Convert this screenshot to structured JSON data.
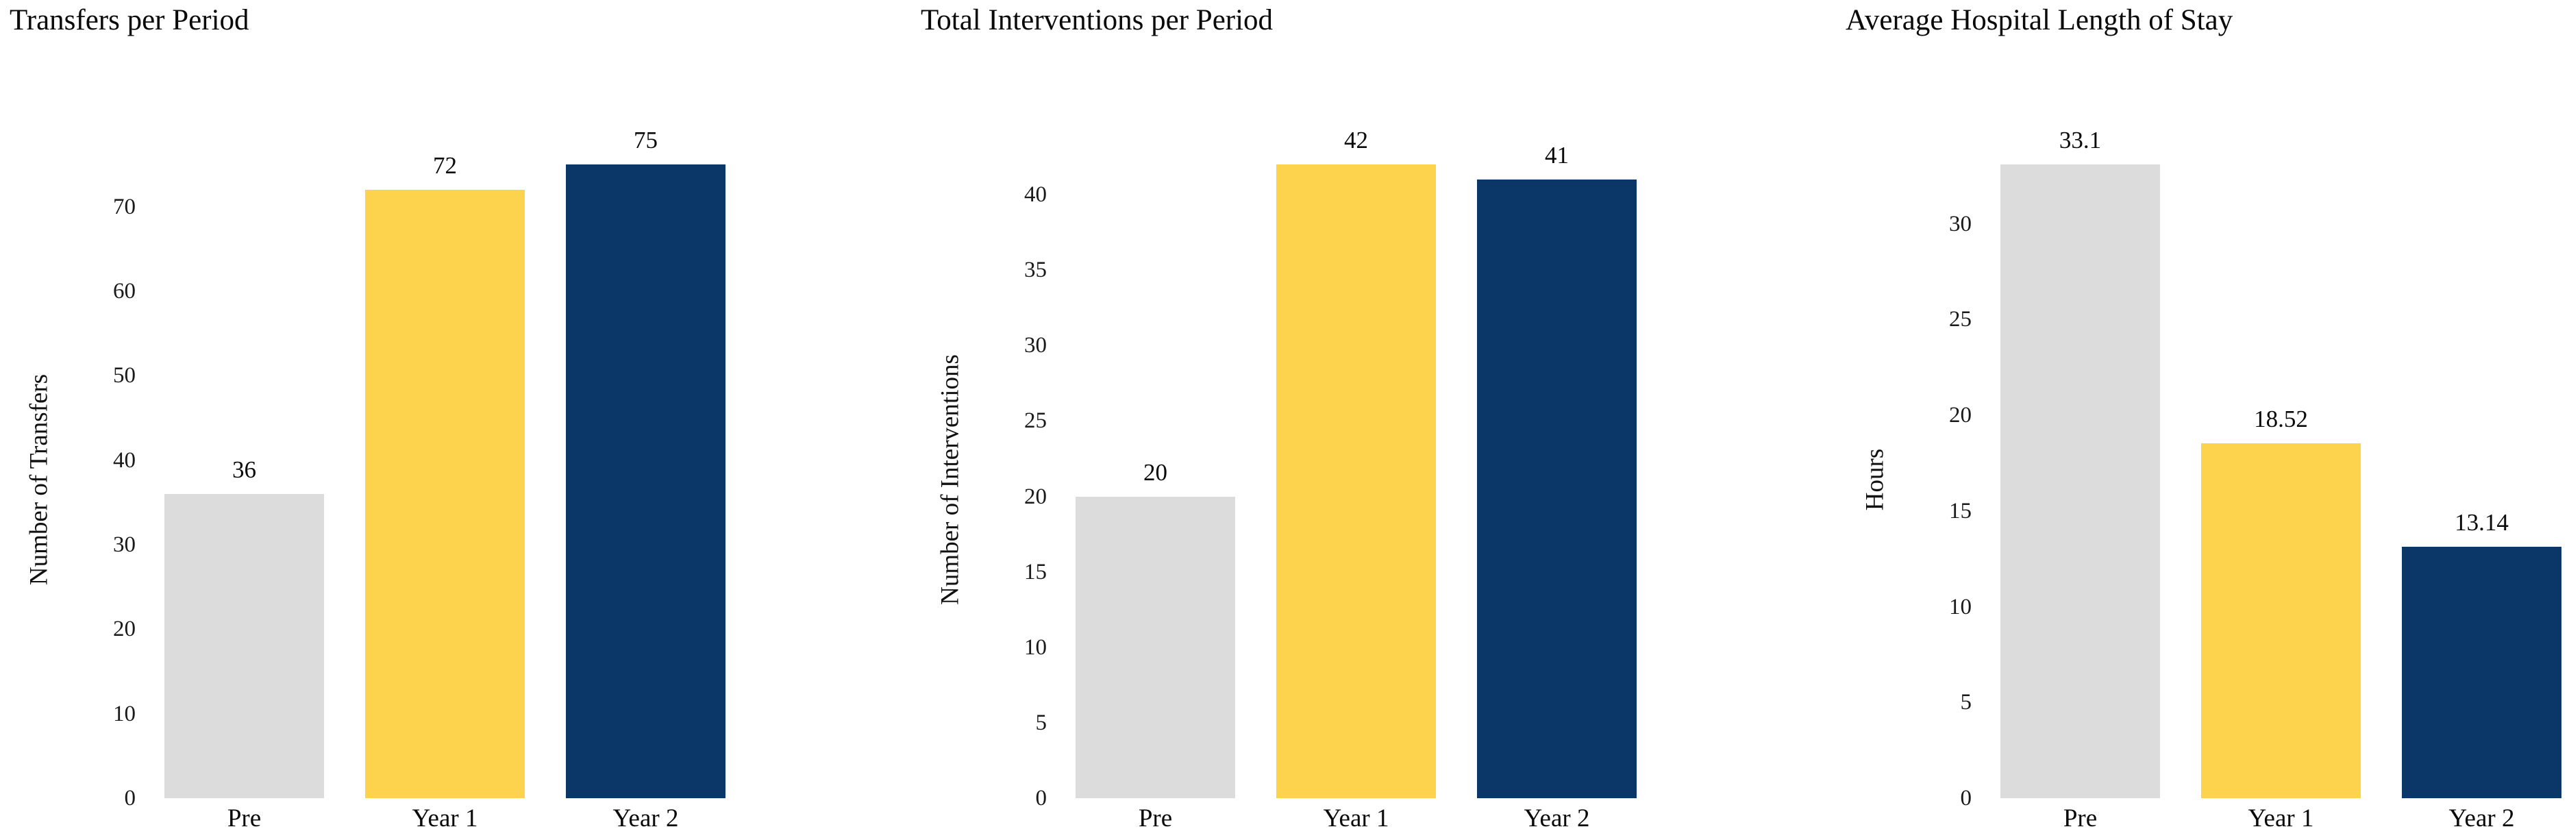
{
  "page": {
    "background": "#ffffff",
    "text_color": "#0a0a0a"
  },
  "palette": {
    "pre_bar": "#dcdcdc",
    "year1_bar": "#fdd34e",
    "year2_bar": "#0a3768"
  },
  "chart_data": [
    {
      "type": "bar",
      "title": "Transfers per Period",
      "xlabel": "",
      "ylabel": "Number of Transfers",
      "categories": [
        "Pre",
        "Year 1",
        "Year 2"
      ],
      "values": [
        36,
        72,
        75
      ],
      "bar_labels": [
        "36",
        "72",
        "75"
      ],
      "bar_colors": [
        "#dcdcdc",
        "#fdd34e",
        "#0a3768"
      ],
      "yticks": [
        0,
        10,
        20,
        30,
        40,
        50,
        60,
        70
      ],
      "ylim": [
        0,
        75
      ],
      "grid": false,
      "legend": "none",
      "axis_lines": false
    },
    {
      "type": "bar",
      "title": "Total Interventions per Period",
      "xlabel": "",
      "ylabel": "Number of Interventions",
      "categories": [
        "Pre",
        "Year 1",
        "Year 2"
      ],
      "values": [
        20,
        42,
        41
      ],
      "bar_labels": [
        "20",
        "42",
        "41"
      ],
      "bar_colors": [
        "#dcdcdc",
        "#fdd34e",
        "#0a3768"
      ],
      "yticks": [
        0,
        5,
        10,
        15,
        20,
        25,
        30,
        35,
        40
      ],
      "ylim": [
        0,
        42
      ],
      "grid": false,
      "legend": "none",
      "axis_lines": false
    },
    {
      "type": "bar",
      "title": "Average Hospital Length of Stay",
      "xlabel": "",
      "ylabel": "Hours",
      "categories": [
        "Pre",
        "Year 1",
        "Year 2"
      ],
      "values": [
        33.1,
        18.52,
        13.14
      ],
      "bar_labels": [
        "33.1",
        "18.52",
        "13.14"
      ],
      "bar_colors": [
        "#dcdcdc",
        "#fdd34e",
        "#0a3768"
      ],
      "yticks": [
        0,
        5,
        10,
        15,
        20,
        25,
        30
      ],
      "ylim": [
        0,
        33.1
      ],
      "grid": false,
      "legend": "none",
      "axis_lines": false
    }
  ]
}
